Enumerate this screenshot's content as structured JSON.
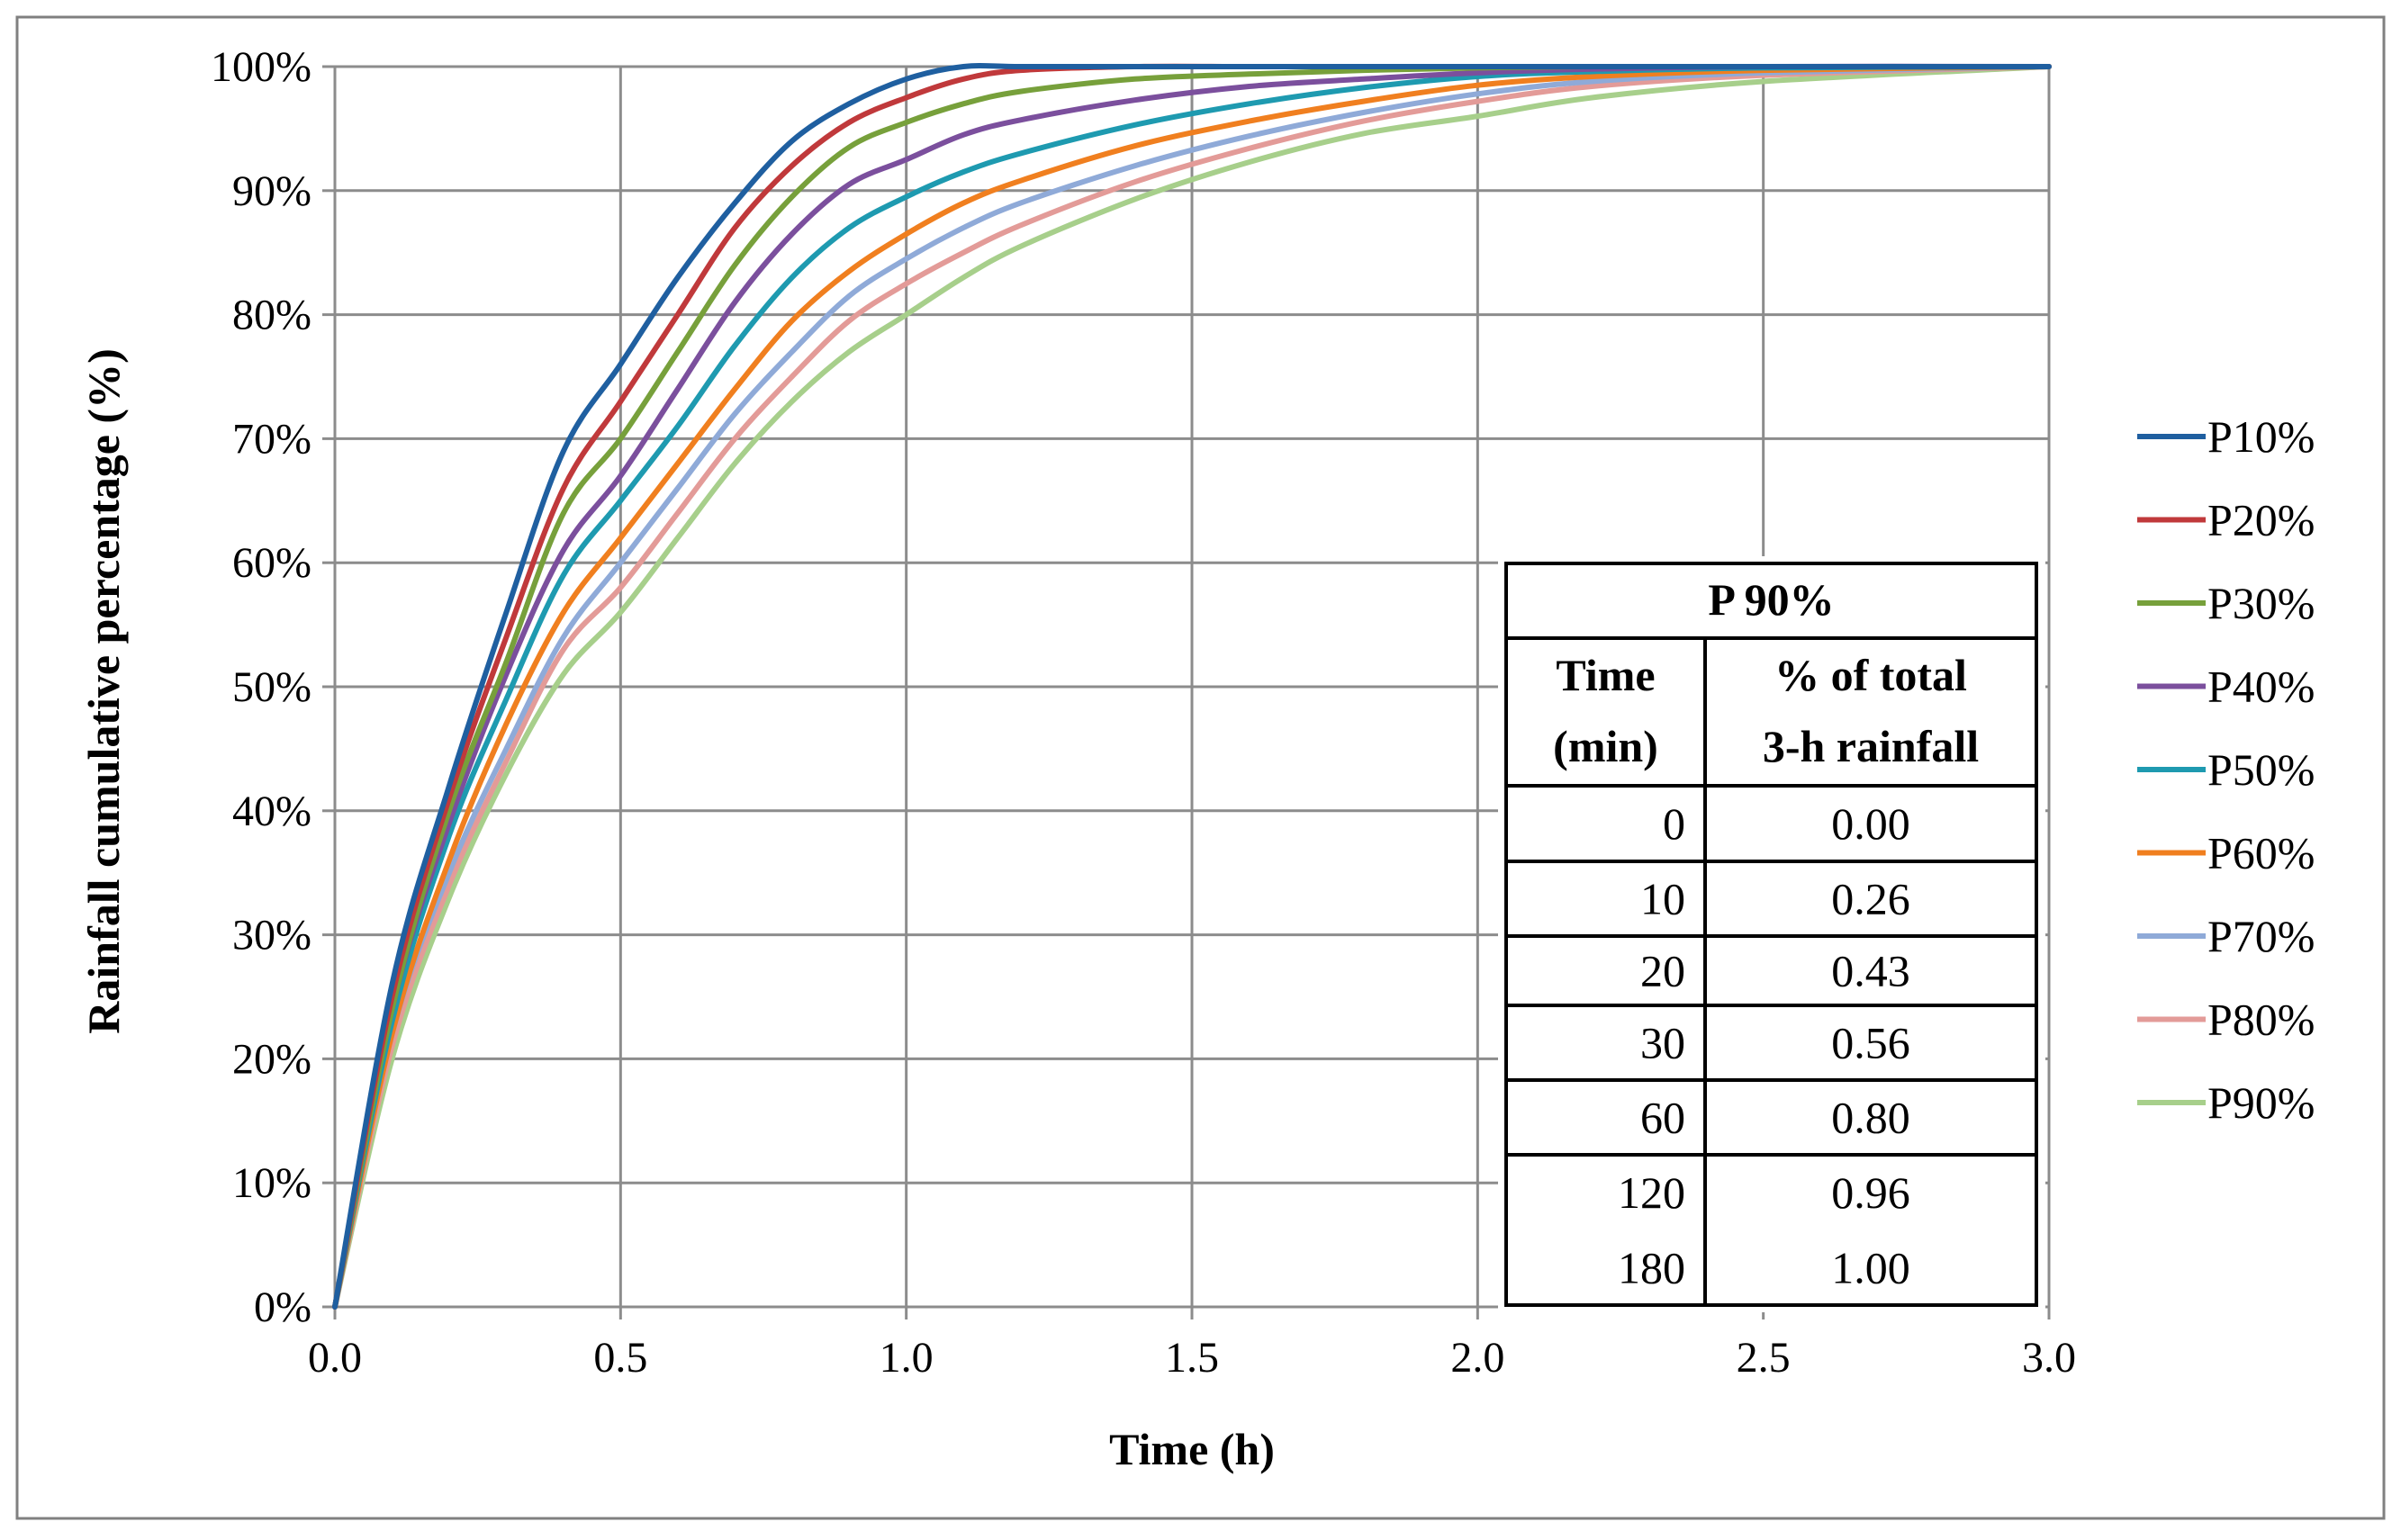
{
  "chart_data": {
    "type": "line",
    "title": "",
    "xlabel": "Time (h)",
    "ylabel": "Rainfall cumulative percentage (%)",
    "xlim": [
      0,
      3
    ],
    "ylim": [
      0,
      100
    ],
    "grid": true,
    "legend_position": "right",
    "x_ticks": [
      "0.0",
      "0.5",
      "1.0",
      "1.5",
      "2.0",
      "2.5",
      "3.0"
    ],
    "y_ticks": [
      "0%",
      "10%",
      "20%",
      "30%",
      "40%",
      "50%",
      "60%",
      "70%",
      "80%",
      "90%",
      "100%"
    ],
    "x": [
      0,
      0.1,
      0.2,
      0.3,
      0.4,
      0.5,
      0.6,
      0.7,
      0.8,
      0.9,
      1.0,
      1.1,
      1.2,
      1.4,
      1.6,
      1.8,
      2.0,
      2.2,
      2.5,
      3.0
    ],
    "series": [
      {
        "name": "P10%",
        "color": "#1f5fa0",
        "values": [
          0,
          26,
          42,
          56,
          69,
          76,
          83,
          89,
          94,
          97,
          99,
          100,
          100,
          100,
          100,
          100,
          100,
          100,
          100,
          100
        ]
      },
      {
        "name": "P20%",
        "color": "#c0393b",
        "values": [
          0,
          25,
          41,
          54,
          66,
          73,
          80,
          87,
          92,
          95.5,
          97.5,
          99,
          99.7,
          100,
          100,
          100,
          100,
          100,
          100,
          100
        ]
      },
      {
        "name": "P30%",
        "color": "#77a03b",
        "values": [
          0,
          24,
          40,
          52,
          64,
          70,
          77,
          84,
          89.5,
          93.5,
          95.5,
          97,
          98,
          99,
          99.4,
          99.7,
          99.9,
          100,
          100,
          100
        ]
      },
      {
        "name": "P40%",
        "color": "#7b4f9d",
        "values": [
          0,
          24,
          39,
          51,
          61,
          67,
          74,
          81,
          86.5,
          90.5,
          92.5,
          94.5,
          95.7,
          97.3,
          98.4,
          99,
          99.5,
          99.8,
          100,
          100
        ]
      },
      {
        "name": "P50%",
        "color": "#1e9ab0",
        "values": [
          0,
          23,
          38,
          49,
          59,
          65,
          71,
          77.5,
          83,
          87,
          89.5,
          91.5,
          93,
          95.3,
          97,
          98.3,
          99.2,
          99.6,
          99.9,
          100
        ]
      },
      {
        "name": "P60%",
        "color": "#f07f1f",
        "values": [
          0,
          22,
          36,
          47,
          56,
          62,
          68,
          74,
          79.5,
          83.5,
          86.5,
          89,
          90.8,
          93.6,
          95.6,
          97.2,
          98.5,
          99.2,
          99.7,
          100
        ]
      },
      {
        "name": "P70%",
        "color": "#8faad8",
        "values": [
          0,
          22,
          35,
          45,
          54,
          60,
          66,
          72,
          77,
          81.5,
          84.5,
          87,
          89,
          92,
          94.4,
          96.3,
          97.8,
          98.8,
          99.5,
          100
        ]
      },
      {
        "name": "P80%",
        "color": "#e39b98",
        "values": [
          0,
          21,
          34,
          44,
          53,
          58,
          64,
          70,
          75,
          79.5,
          82.5,
          85,
          87.2,
          90.7,
          93.4,
          95.6,
          97.2,
          98.4,
          99.3,
          100
        ]
      },
      {
        "name": "P90%",
        "color": "#a7cf8b",
        "values": [
          0,
          20,
          33,
          43,
          51,
          56,
          62,
          68,
          73,
          77,
          80,
          83,
          85.5,
          89.3,
          92.3,
          94.6,
          96,
          97.5,
          98.8,
          100
        ]
      }
    ]
  },
  "inset_table": {
    "title": "P 90%",
    "col1_header": [
      "Time",
      "(min)"
    ],
    "col2_header": [
      "% of total",
      "3-h rainfall"
    ],
    "rows": [
      {
        "time": "0",
        "pct": "0.00"
      },
      {
        "time": "10",
        "pct": "0.26"
      },
      {
        "time": "20",
        "pct": "0.43"
      },
      {
        "time": "30",
        "pct": "0.56"
      },
      {
        "time": "60",
        "pct": "0.80"
      },
      {
        "time": "120",
        "pct": "0.96"
      },
      {
        "time": "180",
        "pct": "1.00"
      }
    ]
  }
}
